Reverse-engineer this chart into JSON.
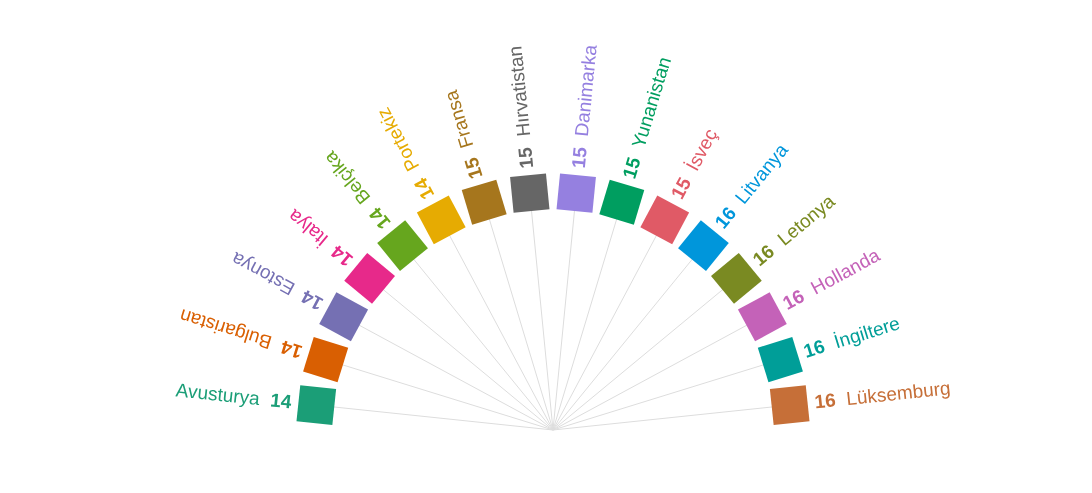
{
  "chart_data": {
    "type": "other",
    "data_labels": true,
    "categories": [
      "Avusturya",
      "Bulgaristan",
      "Estonya",
      "İtalya",
      "Belçika",
      "Portekiz",
      "Fransa",
      "Hırvatistan",
      "Danimarka",
      "Yunanistan",
      "İsveç",
      "Litvanya",
      "Letonya",
      "Hollanda",
      "İngiltere",
      "Lüksemburg"
    ],
    "values": [
      14,
      14,
      14,
      14,
      14,
      14,
      15,
      15,
      15,
      15,
      15,
      16,
      16,
      16,
      16,
      16
    ],
    "colors": [
      "#1b9e77",
      "#d95f02",
      "#7570b3",
      "#e7298a",
      "#66a61e",
      "#e6ab02",
      "#a6761d",
      "#666666",
      "#9580e0",
      "#009e60",
      "#e05a66",
      "#0096db",
      "#7a8a22",
      "#c462b8",
      "#009e98",
      "#c66f38"
    ]
  }
}
